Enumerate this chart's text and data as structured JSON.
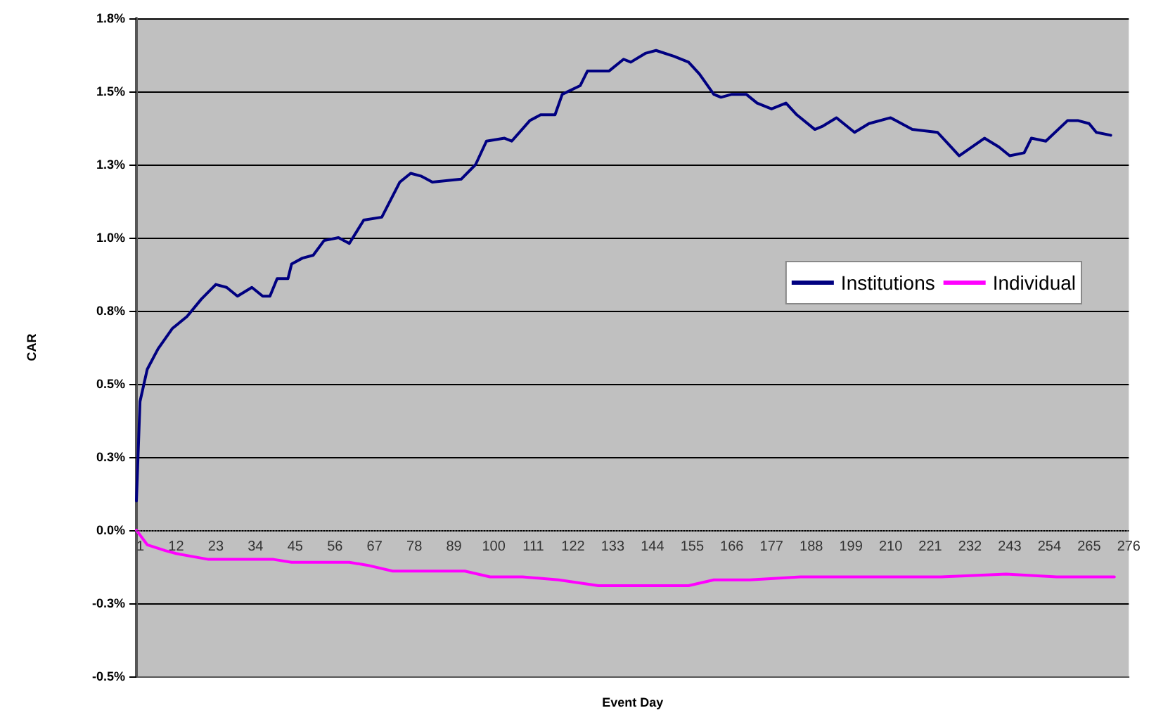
{
  "chart_data": {
    "type": "line",
    "xlabel": "Event Day",
    "ylabel": "CAR",
    "xlim": [
      1,
      276
    ],
    "xticks": [
      1,
      12,
      23,
      34,
      45,
      56,
      67,
      78,
      89,
      100,
      111,
      122,
      133,
      144,
      155,
      166,
      177,
      188,
      199,
      210,
      221,
      232,
      243,
      254,
      265,
      276
    ],
    "ylim": [
      -0.5,
      1.75
    ],
    "yticks": [
      {
        "value": 1.75,
        "label": "1.8%"
      },
      {
        "value": 1.5,
        "label": "1.5%"
      },
      {
        "value": 1.25,
        "label": "1.3%"
      },
      {
        "value": 1.0,
        "label": "1.0%"
      },
      {
        "value": 0.75,
        "label": "0.8%"
      },
      {
        "value": 0.5,
        "label": "0.5%"
      },
      {
        "value": 0.25,
        "label": "0.3%"
      },
      {
        "value": 0,
        "label": "0.0%"
      },
      {
        "value": -0.25,
        "label": "-0.3%"
      },
      {
        "value": -0.5,
        "label": "-0.5%"
      }
    ],
    "grid": "y",
    "legend": "right",
    "ref_lines": [
      {
        "axis": "y",
        "value": 0,
        "color": "#555555",
        "line_style": "dotted"
      }
    ],
    "marker": "none",
    "line_style": "solid",
    "series": [
      {
        "name": "Institutions",
        "color": "#000080",
        "x": [
          1,
          2,
          4,
          7,
          11,
          15,
          19,
          23,
          26,
          29,
          33,
          36,
          38,
          40,
          43,
          44,
          47,
          50,
          53,
          57,
          60,
          64,
          69,
          74,
          77,
          80,
          83,
          91,
          95,
          98,
          103,
          105,
          110,
          113,
          117,
          119,
          124,
          126,
          129,
          132,
          136,
          138,
          142,
          145,
          150,
          154,
          157,
          161,
          163,
          166,
          170,
          173,
          177,
          181,
          184,
          189,
          191,
          195,
          200,
          204,
          210,
          216,
          223,
          226,
          229,
          236,
          240,
          243,
          247,
          249,
          253,
          259,
          262,
          265,
          267,
          271
        ],
        "values": [
          0.1,
          0.44,
          0.55,
          0.62,
          0.69,
          0.73,
          0.79,
          0.84,
          0.83,
          0.8,
          0.83,
          0.8,
          0.8,
          0.86,
          0.86,
          0.91,
          0.93,
          0.94,
          0.99,
          1.0,
          0.98,
          1.06,
          1.07,
          1.19,
          1.22,
          1.21,
          1.19,
          1.2,
          1.25,
          1.33,
          1.34,
          1.33,
          1.4,
          1.42,
          1.42,
          1.49,
          1.52,
          1.57,
          1.57,
          1.57,
          1.61,
          1.6,
          1.63,
          1.64,
          1.62,
          1.6,
          1.56,
          1.49,
          1.48,
          1.49,
          1.49,
          1.46,
          1.44,
          1.46,
          1.42,
          1.37,
          1.38,
          1.41,
          1.36,
          1.39,
          1.41,
          1.37,
          1.36,
          1.32,
          1.28,
          1.34,
          1.31,
          1.28,
          1.29,
          1.34,
          1.33,
          1.4,
          1.4,
          1.39,
          1.36,
          1.35
        ]
      },
      {
        "name": "Individual",
        "color": "#ff00ff",
        "x": [
          1,
          4,
          9,
          12,
          21,
          39,
          44,
          60,
          65,
          72,
          78,
          92,
          99,
          108,
          118,
          129,
          145,
          154,
          161,
          171,
          185,
          189,
          198,
          224,
          242,
          256,
          272
        ],
        "values": [
          0.0,
          -0.05,
          -0.07,
          -0.08,
          -0.1,
          -0.1,
          -0.11,
          -0.11,
          -0.12,
          -0.14,
          -0.14,
          -0.14,
          -0.16,
          -0.16,
          -0.17,
          -0.19,
          -0.19,
          -0.19,
          -0.17,
          -0.17,
          -0.16,
          -0.16,
          -0.16,
          -0.16,
          -0.15,
          -0.16,
          -0.16
        ]
      }
    ]
  }
}
